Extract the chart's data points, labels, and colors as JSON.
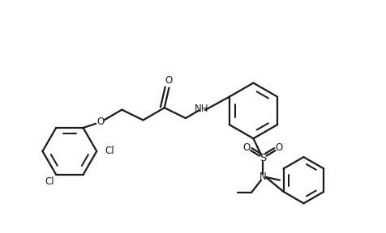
{
  "background_color": "#ffffff",
  "line_color": "#1a1a1a",
  "line_width": 1.6,
  "font_size": 8.5,
  "figsize": [
    4.77,
    2.88
  ],
  "dpi": 100,
  "xlim": [
    0,
    10
  ],
  "ylim": [
    0,
    6
  ]
}
